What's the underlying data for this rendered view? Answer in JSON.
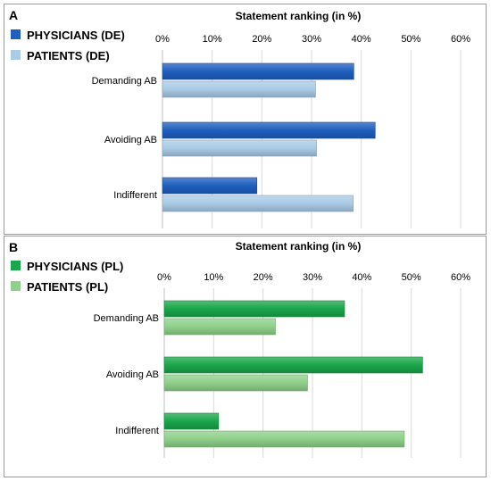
{
  "chart_data": [
    {
      "panel": "A",
      "type": "bar",
      "orientation": "horizontal",
      "title": "Statement ranking (in %)",
      "categories": [
        "Demanding AB",
        "Avoiding AB",
        "Indifferent"
      ],
      "xlim": [
        0,
        60
      ],
      "ticks": [
        0,
        10,
        20,
        30,
        40,
        50,
        60
      ],
      "tick_suffix": "%",
      "grid": true,
      "legend_position": "top-left",
      "series": [
        {
          "name": "PHYSICIANS (DE)",
          "color": "#1f5fbf",
          "values": [
            38.5,
            42.8,
            19.0
          ]
        },
        {
          "name": "PATIENTS (DE)",
          "color": "#a9cbe6",
          "values": [
            30.8,
            31.0,
            38.4
          ]
        }
      ]
    },
    {
      "panel": "B",
      "type": "bar",
      "orientation": "horizontal",
      "title": "Statement ranking (in %)",
      "categories": [
        "Demanding AB",
        "Avoiding AB",
        "Indifferent"
      ],
      "xlim": [
        0,
        60
      ],
      "ticks": [
        0,
        10,
        20,
        30,
        40,
        50,
        60
      ],
      "tick_suffix": "%",
      "grid": true,
      "legend_position": "top-left",
      "series": [
        {
          "name": "PHYSICIANS (PL)",
          "color": "#1aa64a",
          "values": [
            36.5,
            52.3,
            11.0
          ]
        },
        {
          "name": "PATIENTS (PL)",
          "color": "#8fd08a",
          "values": [
            22.5,
            29.0,
            48.6
          ]
        }
      ]
    }
  ]
}
